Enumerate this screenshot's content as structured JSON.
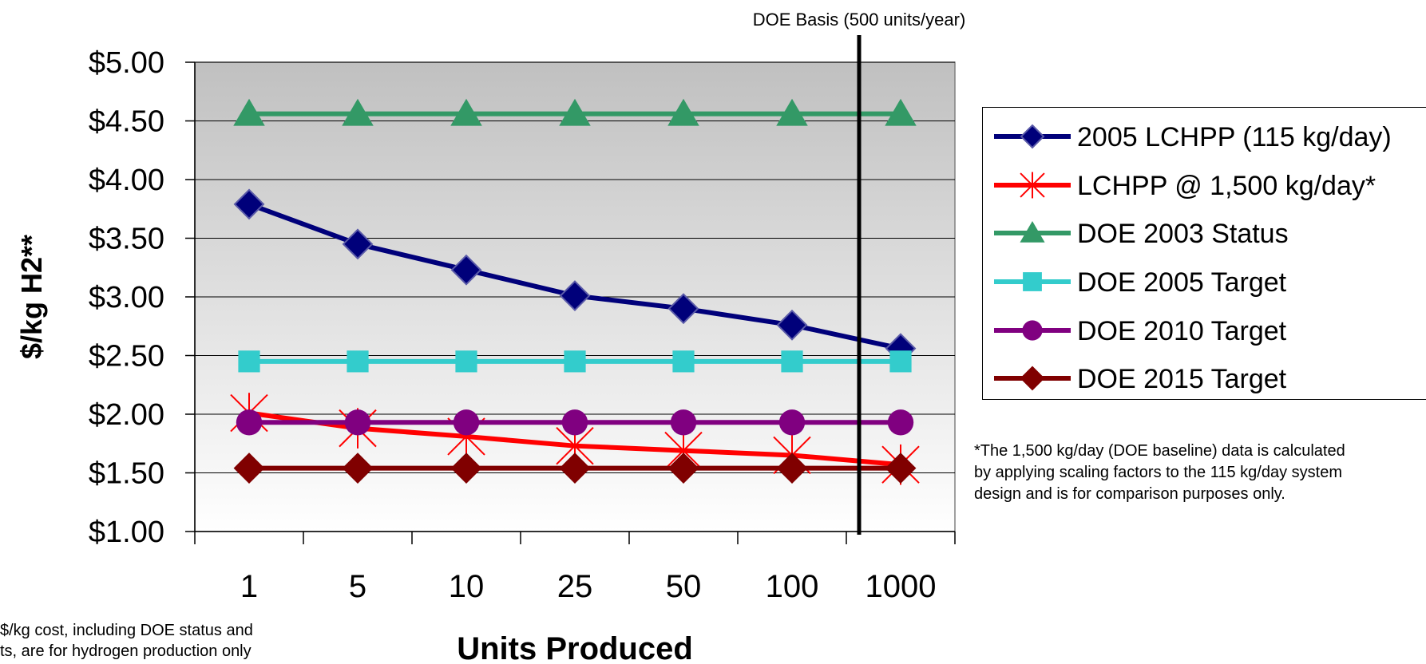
{
  "chart_data": {
    "type": "line",
    "xlabel": "Units Produced",
    "ylabel": "$/kg H2**",
    "categories": [
      "1",
      "5",
      "10",
      "25",
      "50",
      "100",
      "1000"
    ],
    "ylim": [
      1.0,
      5.0
    ],
    "yticks": [
      "$1.00",
      "$1.50",
      "$2.00",
      "$2.50",
      "$3.00",
      "$3.50",
      "$4.00",
      "$4.50",
      "$5.00"
    ],
    "grid": true,
    "legend_position": "right",
    "series": [
      {
        "name": "2005 LCHPP (115 kg/day)",
        "color": "#00007a",
        "marker": "diamond",
        "values": [
          3.79,
          3.45,
          3.23,
          3.01,
          2.9,
          2.76,
          2.56
        ]
      },
      {
        "name": "LCHPP @ 1,500 kg/day*",
        "color": "#ff0000",
        "marker": "star",
        "values": [
          2.01,
          1.88,
          1.81,
          1.73,
          1.69,
          1.65,
          1.57
        ]
      },
      {
        "name": "DOE 2003 Status",
        "color": "#339966",
        "marker": "triangle",
        "values": [
          4.56,
          4.56,
          4.56,
          4.56,
          4.56,
          4.56,
          4.56
        ]
      },
      {
        "name": "DOE 2005 Target",
        "color": "#33cccc",
        "marker": "square",
        "values": [
          2.45,
          2.45,
          2.45,
          2.45,
          2.45,
          2.45,
          2.45
        ]
      },
      {
        "name": "DOE 2010 Target",
        "color": "#800080",
        "marker": "circle",
        "values": [
          1.93,
          1.93,
          1.93,
          1.93,
          1.93,
          1.93,
          1.93
        ]
      },
      {
        "name": "DOE 2015 Target",
        "color": "#800000",
        "marker": "diamond",
        "values": [
          1.54,
          1.54,
          1.54,
          1.54,
          1.54,
          1.54,
          1.54
        ]
      }
    ],
    "annotations": {
      "vline_label": "DOE Basis (500 units/year)",
      "vline_position": "between 100 and 1000",
      "footnote_right": "*The 1,500 kg/day (DOE baseline) data is calculated by applying scaling factors to the 115 kg/day system design and is for comparison purposes only.",
      "footnote_left_line1": "$/kg cost, including DOE status and",
      "footnote_left_line2": "ts, are for hydrogen production only"
    }
  }
}
